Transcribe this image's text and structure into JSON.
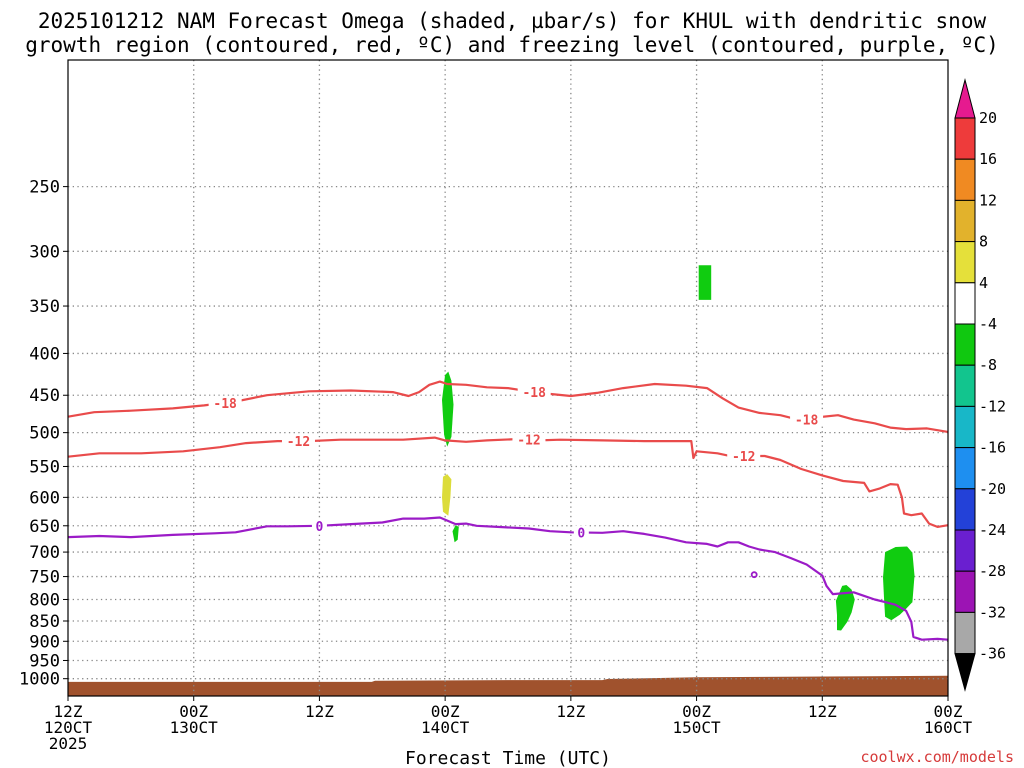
{
  "title_lines": [
    "2025101212 NAM Forecast Omega (shaded, µbar/s) for KHUL with dendritic snow",
    "growth region (contoured, red, ºC) and freezing level (contoured, purple, ºC)"
  ],
  "credit": "coolwx.com/models",
  "colors": {
    "snow_growth": "#e94b4b",
    "freezing": "#9b1bc7",
    "terrain": "#a0522d",
    "omega_neg4_to_neg8": "#10cc10",
    "omega_4_to_8": "#dcdc3a"
  },
  "chart_data": {
    "type": "heatmap",
    "xlabel": "Forecast Time (UTC)",
    "ylim": [
      1050,
      175
    ],
    "xlim": [
      0,
      84
    ],
    "x_ticks": [
      {
        "x": 0,
        "hour": "12Z",
        "day": "120CT",
        "year": "2025"
      },
      {
        "x": 12,
        "hour": "00Z",
        "day": "130CT",
        "year": ""
      },
      {
        "x": 24,
        "hour": "12Z",
        "day": "",
        "year": ""
      },
      {
        "x": 36,
        "hour": "00Z",
        "day": "140CT",
        "year": ""
      },
      {
        "x": 48,
        "hour": "12Z",
        "day": "",
        "year": ""
      },
      {
        "x": 60,
        "hour": "00Z",
        "day": "150CT",
        "year": ""
      },
      {
        "x": 72,
        "hour": "12Z",
        "day": "",
        "year": ""
      },
      {
        "x": 84,
        "hour": "00Z",
        "day": "160CT",
        "year": ""
      }
    ],
    "y_ticks": [
      250,
      300,
      350,
      400,
      450,
      500,
      550,
      600,
      650,
      700,
      750,
      800,
      850,
      900,
      950,
      1000
    ],
    "colorbar": {
      "labels": [
        "20",
        "16",
        "12",
        "8",
        "4",
        "-4",
        "-8",
        "-12",
        "-16",
        "-20",
        "-24",
        "-28",
        "-32",
        "-36"
      ],
      "colors": [
        "#ee3b3b",
        "#f08a22",
        "#e2b22c",
        "#e5e03a",
        "#ffffff",
        "#10c810",
        "#12c58e",
        "#18b7c8",
        "#1e8ff0",
        "#2341d8",
        "#6a1fd0",
        "#9c14b4",
        "#a8a8a8"
      ],
      "top_arrow_color": "#e61a8f",
      "bottom_arrow_color": "#000000"
    },
    "contours": [
      {
        "name": "-18",
        "color": "#e94b4b",
        "labels_at": [
          15,
          44.5,
          70.5
        ],
        "points": [
          [
            0,
            478
          ],
          [
            2.5,
            472
          ],
          [
            6,
            470
          ],
          [
            10,
            467
          ],
          [
            13,
            463
          ],
          [
            16,
            458
          ],
          [
            19,
            450
          ],
          [
            23,
            445
          ],
          [
            27,
            444
          ],
          [
            31,
            446
          ],
          [
            32.5,
            451
          ],
          [
            33.5,
            446
          ],
          [
            34.5,
            437
          ],
          [
            35.5,
            433
          ],
          [
            36.2,
            436
          ],
          [
            38,
            437
          ],
          [
            40,
            440
          ],
          [
            42,
            441
          ],
          [
            45,
            447
          ],
          [
            48,
            451
          ],
          [
            50.5,
            447
          ],
          [
            53,
            441
          ],
          [
            56,
            436
          ],
          [
            59,
            438
          ],
          [
            61,
            441
          ],
          [
            62.5,
            454
          ],
          [
            64,
            466
          ],
          [
            66,
            473
          ],
          [
            68,
            476
          ],
          [
            70,
            483
          ],
          [
            71.5,
            479
          ],
          [
            73.5,
            476
          ],
          [
            75,
            482
          ],
          [
            77,
            487
          ],
          [
            78.5,
            493
          ],
          [
            80,
            495
          ],
          [
            82,
            494
          ],
          [
            84,
            499
          ]
        ]
      },
      {
        "name": "-12",
        "color": "#e94b4b",
        "labels_at": [
          22,
          44,
          64.5
        ],
        "points": [
          [
            0,
            535
          ],
          [
            3,
            530
          ],
          [
            7,
            530
          ],
          [
            11,
            527
          ],
          [
            14.5,
            521
          ],
          [
            17,
            515
          ],
          [
            20,
            512
          ],
          [
            23,
            512
          ],
          [
            26,
            510
          ],
          [
            29,
            510
          ],
          [
            32,
            510
          ],
          [
            35,
            507
          ],
          [
            36,
            511
          ],
          [
            38,
            513
          ],
          [
            40,
            511
          ],
          [
            43,
            509
          ],
          [
            45,
            511
          ],
          [
            47,
            510
          ],
          [
            51,
            511
          ],
          [
            55,
            512
          ],
          [
            58.5,
            512
          ],
          [
            59.5,
            512
          ],
          [
            59.7,
            537
          ],
          [
            60,
            527
          ],
          [
            62,
            530
          ],
          [
            63.5,
            535
          ],
          [
            65,
            534
          ],
          [
            66.5,
            534
          ],
          [
            68,
            540
          ],
          [
            70,
            554
          ],
          [
            72,
            564
          ],
          [
            74,
            573
          ],
          [
            76,
            576
          ],
          [
            76.5,
            590
          ],
          [
            77.5,
            585
          ],
          [
            78.5,
            578
          ],
          [
            79.2,
            579
          ],
          [
            79.6,
            600
          ],
          [
            79.8,
            628
          ],
          [
            80.5,
            631
          ],
          [
            81.5,
            628
          ],
          [
            82.2,
            646
          ],
          [
            83,
            652
          ],
          [
            84,
            649
          ]
        ]
      },
      {
        "name": "0",
        "color": "#9b1bc7",
        "labels_at": [
          24,
          49
        ],
        "points": [
          [
            0,
            671
          ],
          [
            3,
            669
          ],
          [
            6,
            671
          ],
          [
            10,
            667
          ],
          [
            14,
            664
          ],
          [
            16,
            662
          ],
          [
            19,
            651
          ],
          [
            21,
            651
          ],
          [
            24,
            650
          ],
          [
            27,
            647
          ],
          [
            30,
            644
          ],
          [
            32,
            637
          ],
          [
            34,
            637
          ],
          [
            35.5,
            635
          ],
          [
            37,
            647
          ],
          [
            38,
            646
          ],
          [
            39,
            650
          ],
          [
            41,
            652
          ],
          [
            44,
            655
          ],
          [
            46,
            660
          ],
          [
            48,
            662
          ],
          [
            51,
            663
          ],
          [
            53,
            660
          ],
          [
            55,
            665
          ],
          [
            57,
            672
          ],
          [
            59,
            681
          ],
          [
            61,
            684
          ],
          [
            62,
            689
          ],
          [
            63,
            681
          ],
          [
            64,
            681
          ],
          [
            65,
            689
          ],
          [
            66,
            695
          ],
          [
            67.5,
            700
          ],
          [
            69,
            712
          ],
          [
            70.5,
            725
          ],
          [
            72,
            748
          ],
          [
            72.4,
            770
          ],
          [
            73,
            788
          ],
          [
            75,
            784
          ],
          [
            76,
            792
          ],
          [
            77,
            800
          ],
          [
            78,
            806
          ],
          [
            79,
            812
          ],
          [
            80,
            826
          ],
          [
            80.5,
            852
          ],
          [
            80.7,
            889
          ],
          [
            81.5,
            896
          ],
          [
            83,
            894
          ],
          [
            84,
            896
          ]
        ]
      }
    ],
    "freezing_spot": {
      "x": 65.5,
      "p": 746
    },
    "omega_regions": [
      {
        "value_range": [
          -8,
          -4
        ],
        "color": "#10cc10",
        "points": [
          [
            35.7,
            456
          ],
          [
            36,
            425
          ],
          [
            36.3,
            421
          ],
          [
            36.6,
            432
          ],
          [
            36.8,
            462
          ],
          [
            36.6,
            506
          ],
          [
            36.2,
            520
          ],
          [
            35.9,
            503
          ]
        ]
      },
      {
        "value_range": [
          -8,
          -4
        ],
        "color": "#10cc10",
        "points": [
          [
            60.2,
            312
          ],
          [
            61.4,
            312
          ],
          [
            61.4,
            344
          ],
          [
            60.2,
            344
          ]
        ]
      },
      {
        "value_range": [
          -8,
          -4
        ],
        "color": "#10cc10",
        "points": [
          [
            36.7,
            660
          ],
          [
            37,
            649
          ],
          [
            37.3,
            652
          ],
          [
            37.2,
            676
          ],
          [
            36.9,
            681
          ]
        ]
      },
      {
        "value_range": [
          -8,
          -4
        ],
        "color": "#10cc10",
        "points": [
          [
            73.3,
            803
          ],
          [
            73.9,
            770
          ],
          [
            74.3,
            768
          ],
          [
            74.8,
            778
          ],
          [
            75.1,
            800
          ],
          [
            74.8,
            830
          ],
          [
            74.4,
            852
          ],
          [
            73.8,
            873
          ],
          [
            73.4,
            872
          ],
          [
            73.4,
            836
          ]
        ]
      },
      {
        "value_range": [
          -8,
          -4
        ],
        "color": "#10cc10",
        "points": [
          [
            78,
            700
          ],
          [
            79,
            690
          ],
          [
            80.1,
            689
          ],
          [
            80.6,
            701
          ],
          [
            80.8,
            748
          ],
          [
            80.6,
            806
          ],
          [
            80,
            821
          ],
          [
            79.4,
            835
          ],
          [
            78.6,
            848
          ],
          [
            78,
            840
          ],
          [
            77.9,
            800
          ],
          [
            77.8,
            752
          ]
        ]
      },
      {
        "value_range": [
          4,
          8
        ],
        "color": "#dcdc3a",
        "points": [
          [
            35.7,
            600
          ],
          [
            35.8,
            566
          ],
          [
            36.2,
            562
          ],
          [
            36.6,
            570
          ],
          [
            36.5,
            600
          ],
          [
            36.3,
            632
          ],
          [
            35.8,
            625
          ]
        ]
      }
    ],
    "terrain": {
      "color": "#a0522d",
      "points": [
        [
          0,
          1009
        ],
        [
          29,
          1009
        ],
        [
          29.3,
          1006
        ],
        [
          42,
          1004
        ],
        [
          51,
          1004
        ],
        [
          51.5,
          1001
        ],
        [
          60,
          996
        ],
        [
          84,
          992
        ]
      ]
    }
  }
}
